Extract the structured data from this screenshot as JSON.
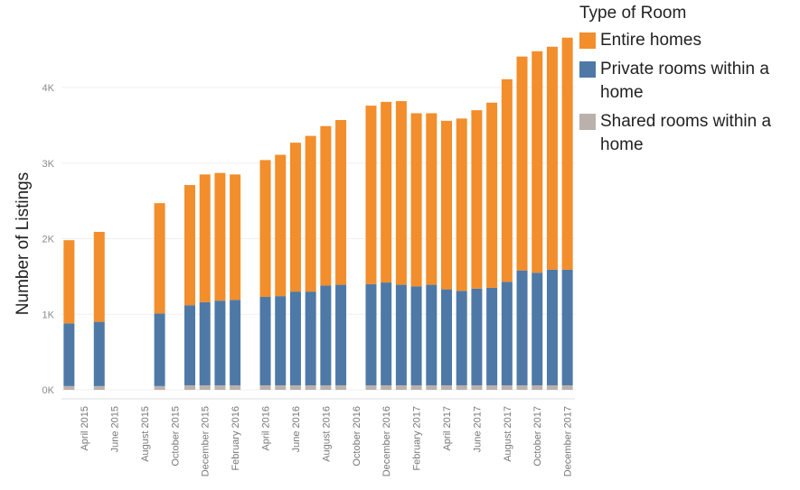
{
  "chart_data": {
    "type": "bar",
    "stacked": true,
    "ylabel": "Number of Listings",
    "xlabel": "",
    "ylim": [
      0,
      4800
    ],
    "yticks": [
      0,
      1000,
      2000,
      3000,
      4000
    ],
    "ytick_labels": [
      "0K",
      "1K",
      "2K",
      "3K",
      "4K"
    ],
    "grid": true,
    "legend_title": "Type of Room",
    "legend_position": "top-right",
    "categories": [
      "March 2015",
      "April 2015",
      "May 2015",
      "June 2015",
      "July 2015",
      "August 2015",
      "September 2015",
      "October 2015",
      "November 2015",
      "December 2015",
      "January 2016",
      "February 2016",
      "March 2016",
      "April 2016",
      "May 2016",
      "June 2016",
      "July 2016",
      "August 2016",
      "September 2016",
      "October 2016",
      "November 2016",
      "December 2016",
      "January 2017",
      "February 2017",
      "March 2017",
      "April 2017",
      "May 2017",
      "June 2017",
      "July 2017",
      "August 2017",
      "September 2017",
      "October 2017",
      "November 2017",
      "December 2017"
    ],
    "x_tick_labels": [
      "April 2015",
      "June 2015",
      "August 2015",
      "October 2015",
      "December 2015",
      "February 2016",
      "April 2016",
      "June 2016",
      "August 2016",
      "October 2016",
      "December 2016",
      "February 2017",
      "April 2017",
      "June 2017",
      "August 2017",
      "October 2017",
      "December 2017"
    ],
    "series": [
      {
        "name": "Shared rooms within a home",
        "color": "#bab0ac",
        "values": [
          50,
          null,
          50,
          null,
          null,
          null,
          50,
          null,
          60,
          60,
          60,
          60,
          null,
          60,
          60,
          60,
          60,
          60,
          60,
          null,
          60,
          60,
          60,
          60,
          60,
          60,
          60,
          60,
          60,
          60,
          60,
          60,
          60,
          60
        ]
      },
      {
        "name": "Private rooms within a home",
        "color": "#4e79a7",
        "values": [
          830,
          null,
          850,
          null,
          null,
          null,
          960,
          null,
          1060,
          1100,
          1120,
          1130,
          null,
          1170,
          1180,
          1240,
          1240,
          1320,
          1330,
          null,
          1340,
          1360,
          1330,
          1310,
          1330,
          1270,
          1250,
          1280,
          1290,
          1370,
          1520,
          1490,
          1530,
          1530
        ]
      },
      {
        "name": "Entire homes",
        "color": "#f28e2b",
        "values": [
          1100,
          null,
          1190,
          null,
          null,
          null,
          1460,
          null,
          1590,
          1690,
          1690,
          1660,
          null,
          1810,
          1870,
          1970,
          2060,
          2110,
          2180,
          null,
          2360,
          2390,
          2430,
          2290,
          2270,
          2230,
          2280,
          2360,
          2450,
          2680,
          2830,
          2930,
          2950,
          3070
        ]
      }
    ]
  }
}
